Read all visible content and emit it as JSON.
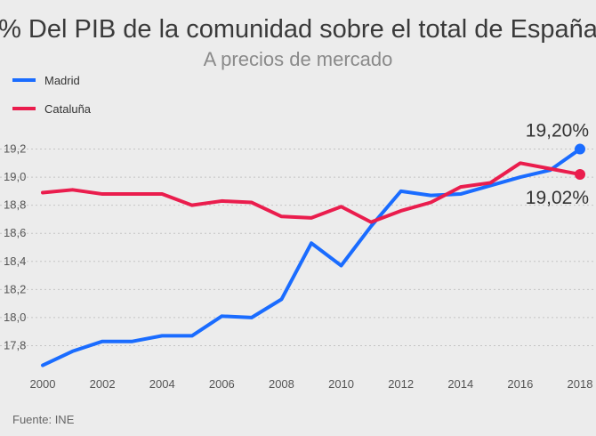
{
  "chart_data": {
    "type": "line",
    "title": "% Del PIB de la comunidad sobre el total de España",
    "subtitle": "A precios de mercado",
    "source": "Fuente: INE",
    "x": [
      2000,
      2001,
      2002,
      2003,
      2004,
      2005,
      2006,
      2007,
      2008,
      2009,
      2010,
      2011,
      2012,
      2013,
      2014,
      2015,
      2016,
      2017,
      2018
    ],
    "x_ticks": [
      "2000",
      "2002",
      "2004",
      "2006",
      "2008",
      "2010",
      "2012",
      "2014",
      "2016",
      "2018"
    ],
    "y_ticks": [
      "17,8",
      "18,0",
      "18,2",
      "18,4",
      "18,6",
      "18,8",
      "19,0",
      "19,2"
    ],
    "ylim": [
      17.6,
      19.4
    ],
    "grid": true,
    "legend_position": "top-left",
    "series": [
      {
        "name": "Madrid",
        "color": "#1a6cff",
        "values": [
          17.66,
          17.76,
          17.83,
          17.83,
          17.87,
          17.87,
          18.01,
          18.0,
          18.13,
          18.53,
          18.37,
          18.65,
          18.9,
          18.87,
          18.88,
          18.94,
          19.0,
          19.05,
          19.2
        ],
        "end_label": "19,20%"
      },
      {
        "name": "Cataluña",
        "color": "#ea1d4d",
        "values": [
          18.89,
          18.91,
          18.88,
          18.88,
          18.88,
          18.8,
          18.83,
          18.82,
          18.72,
          18.71,
          18.79,
          18.68,
          18.76,
          18.82,
          18.93,
          18.96,
          19.1,
          19.06,
          19.02
        ],
        "end_label": "19,02%"
      }
    ]
  }
}
